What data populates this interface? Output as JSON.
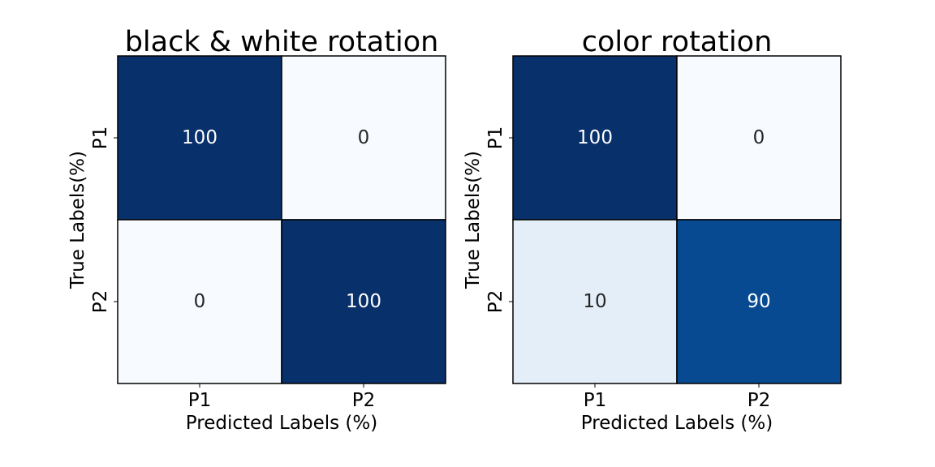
{
  "chart_data": [
    {
      "type": "heatmap",
      "title": "black & white rotation",
      "xlabel": "Predicted Labels (%)",
      "ylabel": "True Labels(%)",
      "x_categories": [
        "P1",
        "P2"
      ],
      "y_categories": [
        "P1",
        "P2"
      ],
      "values": [
        [
          100,
          0
        ],
        [
          0,
          100
        ]
      ],
      "vmin": 0,
      "vmax": 100,
      "colormap": "Blues",
      "colorbar": false
    },
    {
      "type": "heatmap",
      "title": "color rotation",
      "xlabel": "Predicted Labels (%)",
      "ylabel": "True Labels(%)",
      "x_categories": [
        "P1",
        "P2"
      ],
      "y_categories": [
        "P1",
        "P2"
      ],
      "values": [
        [
          100,
          0
        ],
        [
          10,
          90
        ]
      ],
      "vmin": 0,
      "vmax": 100,
      "colormap": "Blues",
      "colorbar": false
    }
  ]
}
